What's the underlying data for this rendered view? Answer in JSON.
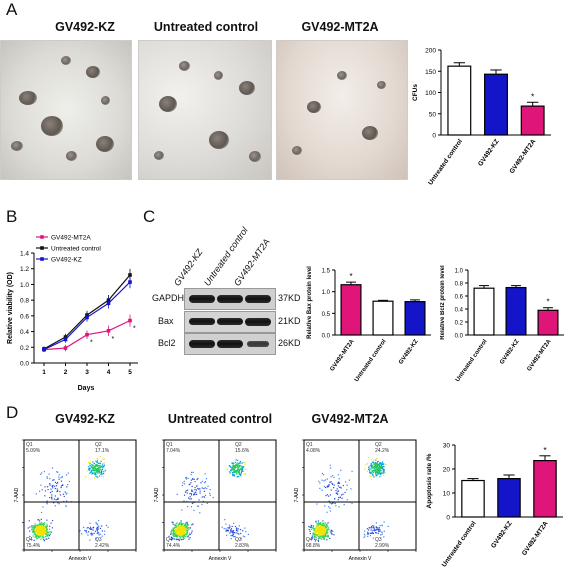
{
  "panels": {
    "A": {
      "letter": "A",
      "titles": [
        "GV492-KZ",
        "Untreated control",
        "GV492-MT2A"
      ]
    },
    "B": {
      "letter": "B"
    },
    "C": {
      "letter": "C",
      "wb_columns": [
        "GV492-KZ",
        "Untreated control",
        "GV492-MT2A"
      ],
      "wb_rows": [
        {
          "protein": "GAPDH",
          "mw": "37KD"
        },
        {
          "protein": "Bax",
          "mw": "21KD"
        },
        {
          "protein": "Bcl2",
          "mw": "26KD"
        }
      ]
    },
    "D": {
      "letter": "D",
      "titles": [
        "GV492-KZ",
        "Untreated control",
        "GV492-MT2A"
      ],
      "flow_axes": {
        "y": "7-AAD",
        "x": "Annexin V"
      },
      "flow_plots": [
        {
          "q1_label": "Q1",
          "q1": "5.09%",
          "q2_label": "Q2",
          "q2": "17.1%",
          "q3_label": "Q3",
          "q3": "2.42%",
          "q4_label": "Q4",
          "q4": "75.4%"
        },
        {
          "q1_label": "Q1",
          "q1": "7.04%",
          "q2_label": "Q2",
          "q2": "15.6%",
          "q3_label": "Q3",
          "q3": "2.83%",
          "q4_label": "Q4",
          "q4": "74.4%"
        },
        {
          "q1_label": "Q1",
          "q1": "4.08%",
          "q2_label": "Q2",
          "q2": "24.2%",
          "q3_label": "Q3",
          "q3": "2.99%",
          "q4_label": "Q4",
          "q4": "68.8%"
        }
      ]
    }
  },
  "colors": {
    "white": "#ffffff",
    "blue": "#1414c8",
    "pink": "#e0157a",
    "black": "#111111"
  },
  "chart_data": [
    {
      "id": "A-cfu",
      "type": "bar",
      "categories": [
        "Untreated control",
        "GV492-KZ",
        "GV492-MT2A"
      ],
      "values": [
        162,
        143,
        68
      ],
      "errors": [
        8,
        10,
        9
      ],
      "colors": [
        "#ffffff",
        "#1414c8",
        "#e0157a"
      ],
      "ylabel": "CFUs",
      "ylim": [
        0,
        200
      ],
      "yticks": [
        "0",
        "50",
        "100",
        "150",
        "200"
      ],
      "star_index": 2,
      "star": "*"
    },
    {
      "id": "B-viability",
      "type": "line",
      "x": [
        1,
        2,
        3,
        4,
        5
      ],
      "xlabel": "Days",
      "ylabel": "Relative viability (OD)",
      "ylim": [
        0,
        1.4
      ],
      "yticks": [
        "0.0",
        "0.2",
        "0.4",
        "0.6",
        "0.8",
        "1.0",
        "1.2",
        "1.4"
      ],
      "xticks": [
        "1",
        "2",
        "3",
        "4",
        "5"
      ],
      "series": [
        {
          "name": "GV492-MT2A",
          "values": [
            0.17,
            0.19,
            0.36,
            0.41,
            0.54
          ],
          "color": "#e0157a"
        },
        {
          "name": "Untreated control",
          "values": [
            0.18,
            0.33,
            0.61,
            0.8,
            1.12
          ],
          "color": "#111111"
        },
        {
          "name": "GV492-KZ",
          "values": [
            0.17,
            0.3,
            0.58,
            0.76,
            1.03
          ],
          "color": "#1414c8"
        }
      ],
      "star_x": [
        3,
        4,
        5
      ],
      "star": "*",
      "legend": "top-left"
    },
    {
      "id": "C-bax",
      "type": "bar",
      "categories": [
        "GV492-MT2A",
        "Untreated control",
        "GV492-KZ"
      ],
      "values": [
        1.16,
        0.78,
        0.77
      ],
      "errors": [
        0.06,
        0.02,
        0.04
      ],
      "colors": [
        "#e0157a",
        "#ffffff",
        "#1414c8"
      ],
      "ylabel": "Relative Bax protein level",
      "ylim": [
        0,
        1.5
      ],
      "yticks": [
        "0.0",
        "0.5",
        "1.0",
        "1.5"
      ],
      "star_index": 0,
      "star": "*"
    },
    {
      "id": "C-bcl2",
      "type": "bar",
      "categories": [
        "Untreated control",
        "GV492-KZ",
        "GV492-MT2A"
      ],
      "values": [
        0.72,
        0.73,
        0.38
      ],
      "errors": [
        0.04,
        0.03,
        0.04
      ],
      "colors": [
        "#ffffff",
        "#1414c8",
        "#e0157a"
      ],
      "ylabel": "Relative Bcl2 protein level",
      "ylim": [
        0,
        1.0
      ],
      "yticks": [
        "0.0",
        "0.2",
        "0.4",
        "0.6",
        "0.8",
        "1.0"
      ],
      "star_index": 2,
      "star": "*"
    },
    {
      "id": "D-apoptosis",
      "type": "bar",
      "categories": [
        "Untreated control",
        "GV492-KZ",
        "GV492-MT2A"
      ],
      "values": [
        15.2,
        16.0,
        23.5
      ],
      "errors": [
        0.8,
        1.5,
        2.0
      ],
      "colors": [
        "#ffffff",
        "#1414c8",
        "#e0157a"
      ],
      "ylabel": "Apoptosis rate /%",
      "ylim": [
        0,
        30
      ],
      "yticks": [
        "0",
        "10",
        "20",
        "30"
      ],
      "star_index": 2,
      "star": "*"
    }
  ]
}
